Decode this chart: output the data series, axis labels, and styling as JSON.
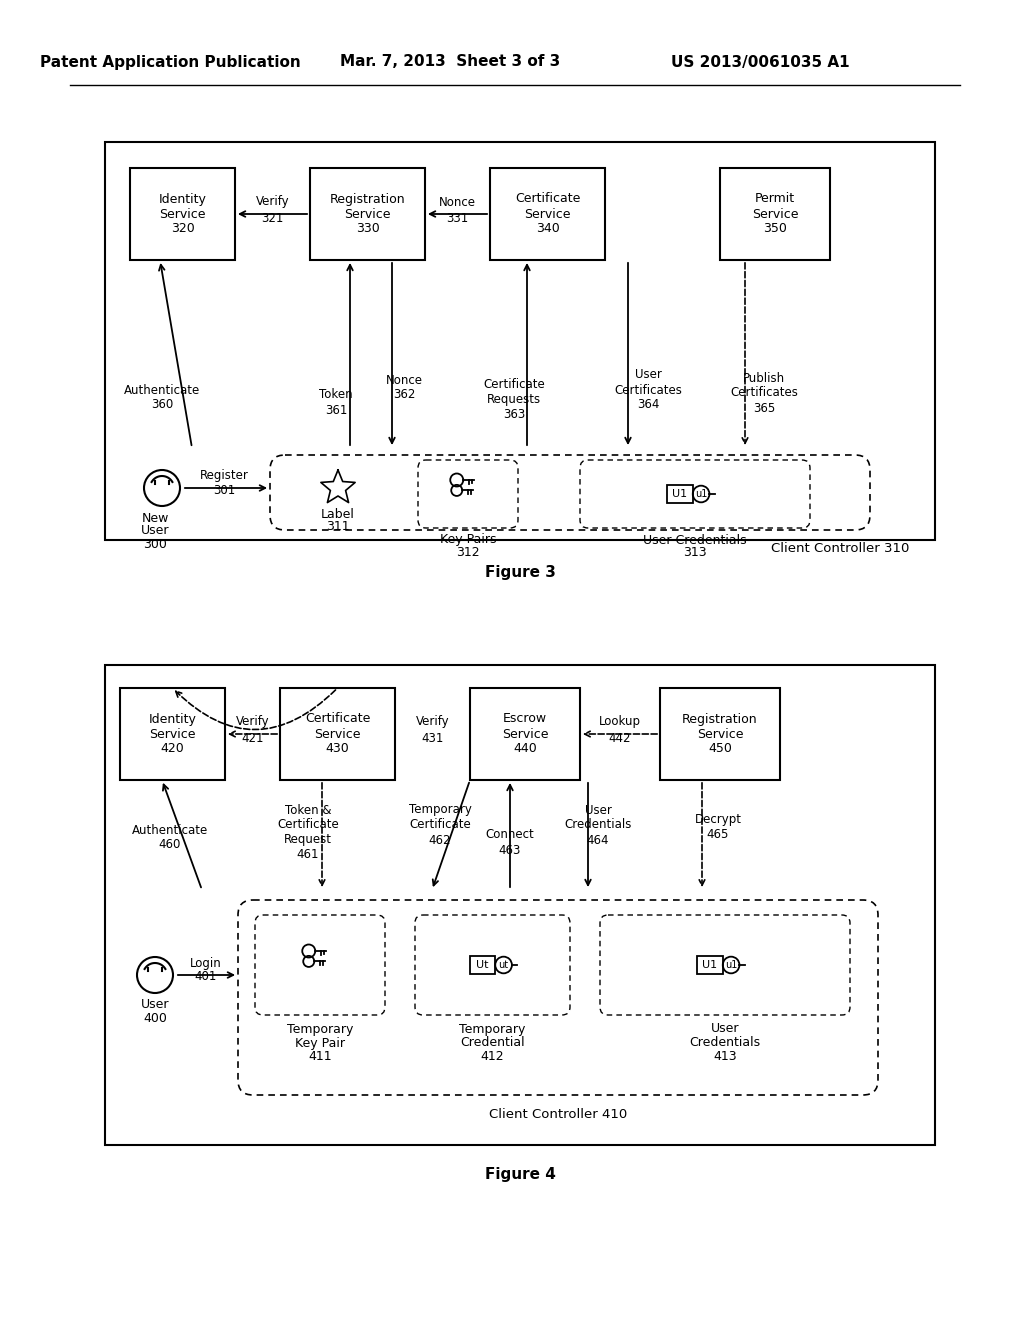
{
  "bg_color": "#ffffff",
  "header_left": "Patent Application Publication",
  "header_mid": "Mar. 7, 2013  Sheet 3 of 3",
  "header_right": "US 2013/0061035 A1",
  "fig3_caption": "Figure 3",
  "fig4_caption": "Figure 4"
}
